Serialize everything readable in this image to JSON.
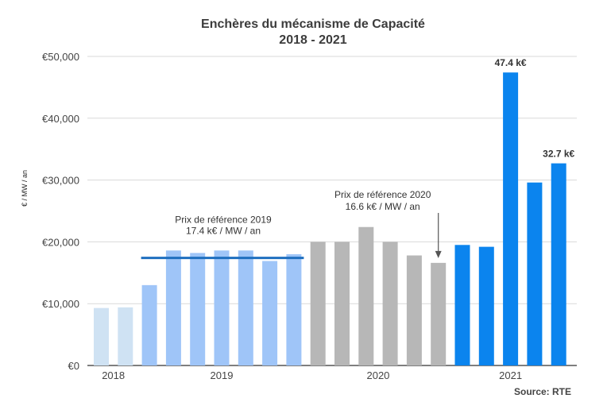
{
  "chart_data": {
    "type": "bar",
    "title_line1": "Enchères du mécanisme de Capacité",
    "title_line2": "2018 - 2021",
    "ylabel": "€ / MW / an",
    "ylim": [
      0,
      50000
    ],
    "yticks": [
      0,
      10000,
      20000,
      30000,
      40000,
      50000
    ],
    "ytick_labels": [
      "€0",
      "€10,000",
      "€20,000",
      "€30,000",
      "€40,000",
      "€50,000"
    ],
    "grid": true,
    "year_colors": {
      "2018": "#cfe2f3",
      "2019": "#9fc5f8",
      "2020": "#b7b7b7",
      "2021": "#0b84ee"
    },
    "bars": [
      {
        "year": "2018",
        "value": 9300
      },
      {
        "year": "2018",
        "value": 9400
      },
      {
        "year": "2019",
        "value": 13000
      },
      {
        "year": "2019",
        "value": 18600
      },
      {
        "year": "2019",
        "value": 18200
      },
      {
        "year": "2019",
        "value": 18600
      },
      {
        "year": "2019",
        "value": 18600
      },
      {
        "year": "2019",
        "value": 16900
      },
      {
        "year": "2019",
        "value": 18000
      },
      {
        "year": "2020",
        "value": 20000
      },
      {
        "year": "2020",
        "value": 20000
      },
      {
        "year": "2020",
        "value": 22400
      },
      {
        "year": "2020",
        "value": 20000
      },
      {
        "year": "2020",
        "value": 17800
      },
      {
        "year": "2020",
        "value": 16600
      },
      {
        "year": "2021",
        "value": 19500
      },
      {
        "year": "2021",
        "value": 19200
      },
      {
        "year": "2021",
        "value": 47400
      },
      {
        "year": "2021",
        "value": 29600
      },
      {
        "year": "2021",
        "value": 32700
      }
    ],
    "year_labels": [
      {
        "label": "2018",
        "bar_start": 0,
        "bar_end": 1
      },
      {
        "label": "2019",
        "bar_start": 2,
        "bar_end": 8
      },
      {
        "label": "2020",
        "bar_start": 9,
        "bar_end": 14
      },
      {
        "label": "2021",
        "bar_start": 15,
        "bar_end": 19
      }
    ],
    "data_labels": [
      {
        "bar": 17,
        "text": "47.4 k€"
      },
      {
        "bar": 19,
        "text": "32.7 k€"
      }
    ],
    "reference_2019": {
      "value": 17400,
      "line1": "Prix de référence 2019",
      "line2": "17.4 k€ / MW / an",
      "color": "#1f6fbf",
      "bar_start": 2,
      "bar_end": 8
    },
    "reference_2020": {
      "value": 16600,
      "line1": "Prix de référence 2020",
      "line2": "16.6 k€ / MW / an",
      "arrow_to_bar": 14
    },
    "source": "Source: RTE"
  }
}
